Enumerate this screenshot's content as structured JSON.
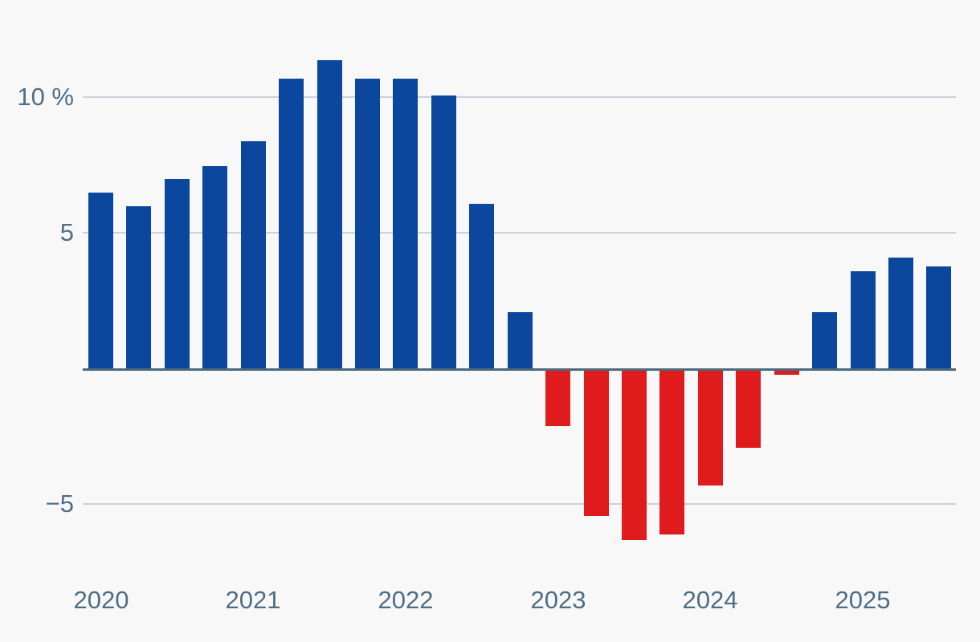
{
  "chart": {
    "background_color": "#f8f8f9",
    "positive_bar_color": "#0b479d",
    "negative_bar_color": "#e01b1b",
    "gridline_color": "#c7d2db",
    "zero_line_color": "#4a697c",
    "axis_text_color": "#4f6d83"
  },
  "chart_data": {
    "type": "bar",
    "title": "",
    "xlabel": "",
    "ylabel": "",
    "unit_suffix": "%",
    "periods": [
      "2020 Q1",
      "2020 Q2",
      "2020 Q3",
      "2020 Q4",
      "2021 Q1",
      "2021 Q2",
      "2021 Q3",
      "2021 Q4",
      "2022 Q1",
      "2022 Q2",
      "2022 Q3",
      "2022 Q4",
      "2023 Q1",
      "2023 Q2",
      "2023 Q3",
      "2023 Q4",
      "2024 Q1",
      "2024 Q2",
      "2024 Q3",
      "2024 Q4",
      "2025 Q1",
      "2025 Q2",
      "2025 Q3"
    ],
    "values": [
      6.5,
      6.0,
      7.0,
      7.5,
      8.4,
      10.7,
      11.4,
      10.7,
      10.7,
      10.1,
      6.1,
      2.1,
      -2.1,
      -5.4,
      -6.3,
      -6.1,
      -4.3,
      -2.9,
      -0.2,
      2.1,
      3.6,
      4.1,
      3.8
    ],
    "x_tick_labels": [
      "2020",
      "2021",
      "2022",
      "2023",
      "2024",
      "2025"
    ],
    "x_tick_bar_indices": [
      0,
      4,
      8,
      12,
      16,
      20
    ],
    "y_ticks": [
      {
        "value": 10,
        "label": "10 %"
      },
      {
        "value": 5,
        "label": "5"
      },
      {
        "value": -5,
        "label": "−5"
      }
    ],
    "zero_baseline": 0,
    "ylim": [
      -7.5,
      13.5
    ],
    "grid": "horizontal",
    "legend": "none",
    "color_rule": "positive values blue, negative values red"
  }
}
